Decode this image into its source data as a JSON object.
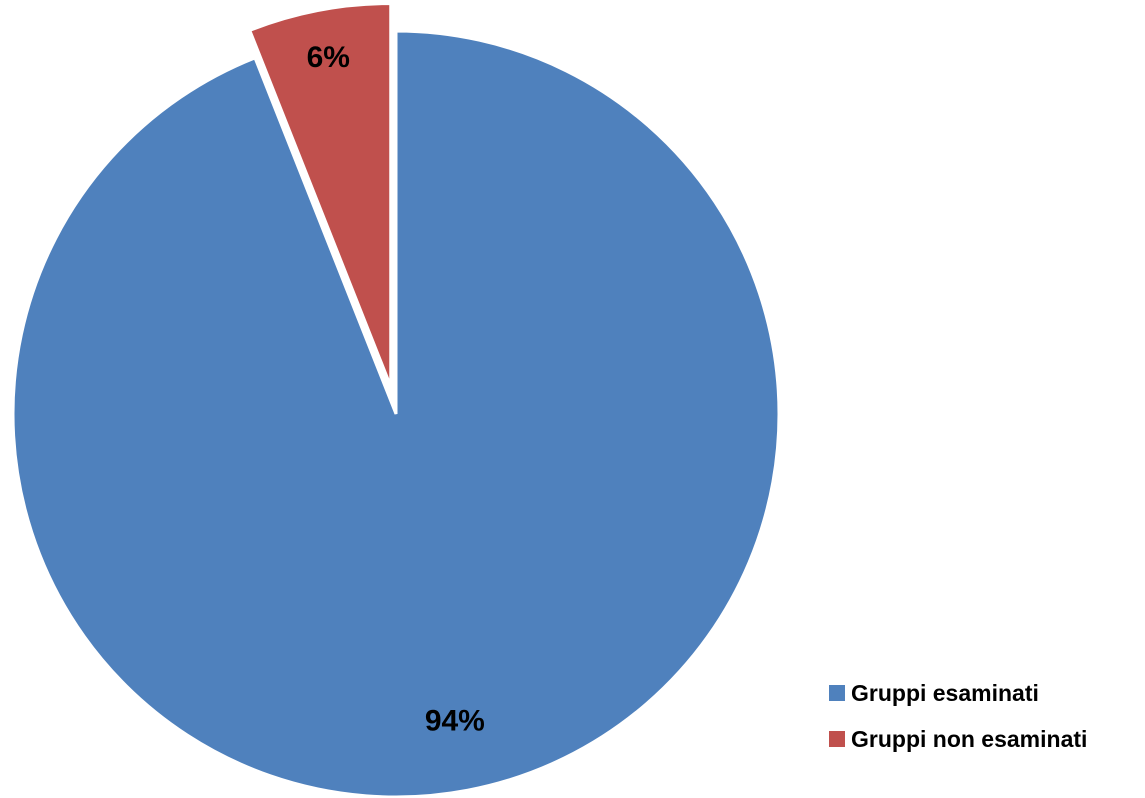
{
  "chart_data": {
    "type": "pie",
    "title": "",
    "start_angle_deg": 0,
    "direction": "clockwise",
    "legend_position": "bottom-right",
    "slices": [
      {
        "name": "Gruppi esaminati",
        "value": 94,
        "label": "94%",
        "color": "#4F81BD",
        "exploded": false
      },
      {
        "name": "Gruppi non esaminati",
        "value": 6,
        "label": "6%",
        "color": "#C0504D",
        "exploded": true
      }
    ]
  }
}
